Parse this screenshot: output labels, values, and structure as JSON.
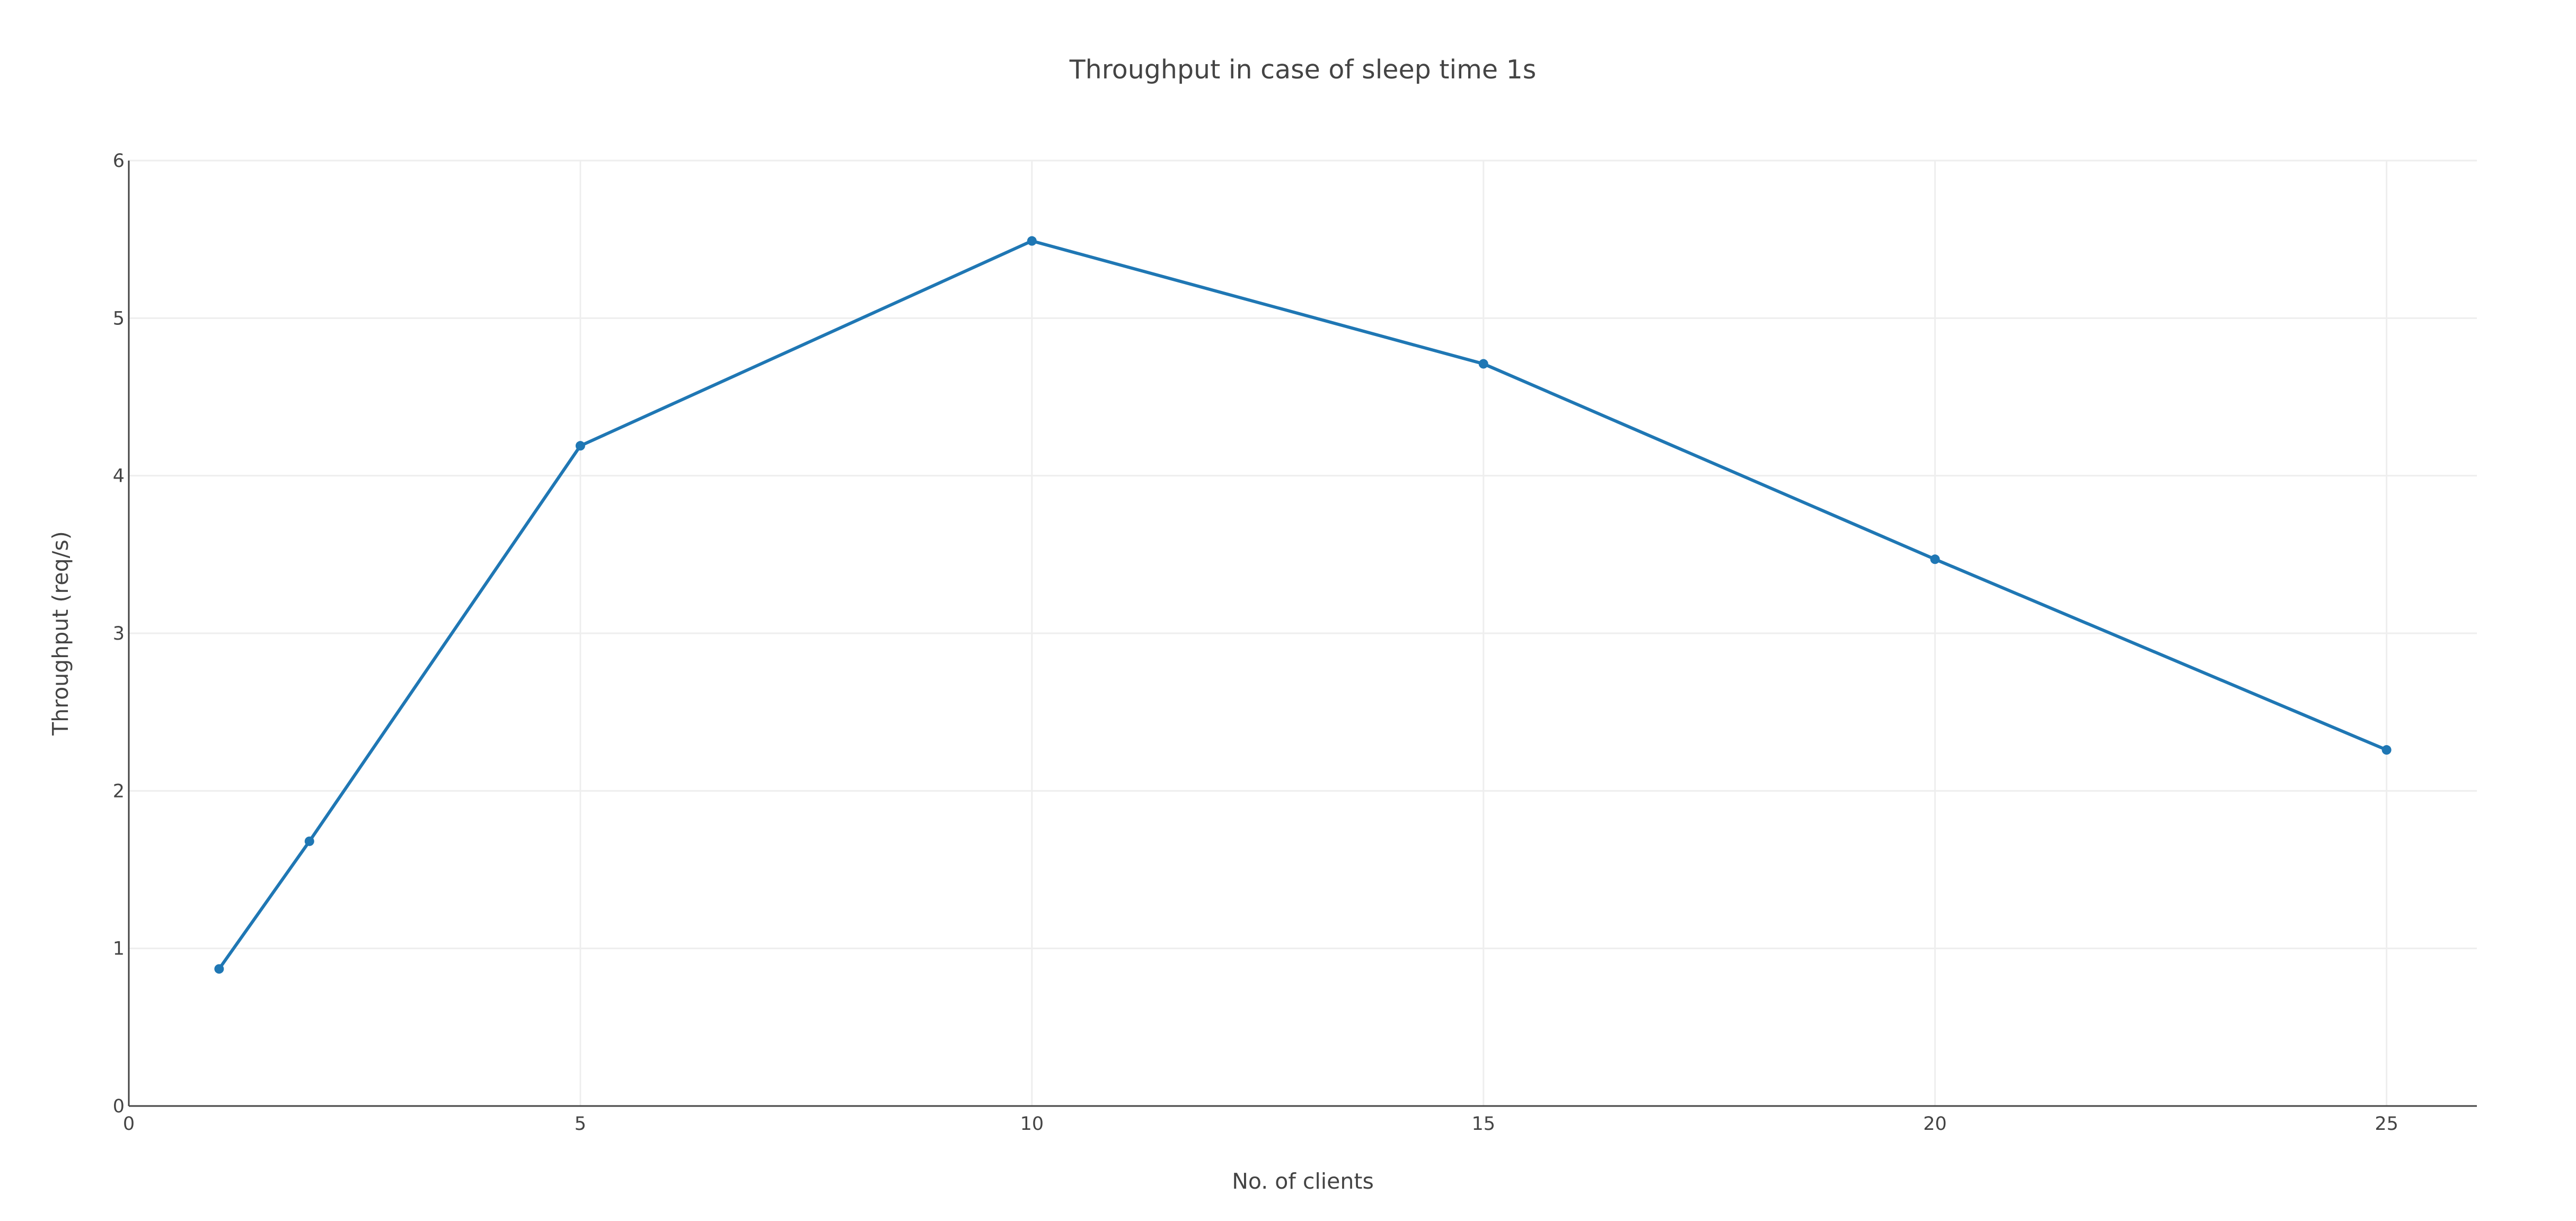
{
  "chart_data": {
    "type": "line",
    "title": "Throughput in case of sleep time 1s",
    "xlabel": "No. of clients",
    "ylabel": "Throughput (req/s)",
    "xlim": [
      0,
      26
    ],
    "ylim": [
      0,
      6
    ],
    "x_ticks": [
      0,
      5,
      10,
      15,
      20,
      25
    ],
    "y_ticks": [
      0,
      1,
      2,
      3,
      4,
      5,
      6
    ],
    "grid": true,
    "legend": "none",
    "series": [
      {
        "color": "#1f77b4",
        "x": [
          1,
          2,
          5,
          10,
          15,
          20,
          25
        ],
        "y": [
          0.87,
          1.68,
          4.19,
          5.49,
          4.71,
          3.47,
          2.26
        ]
      }
    ]
  }
}
